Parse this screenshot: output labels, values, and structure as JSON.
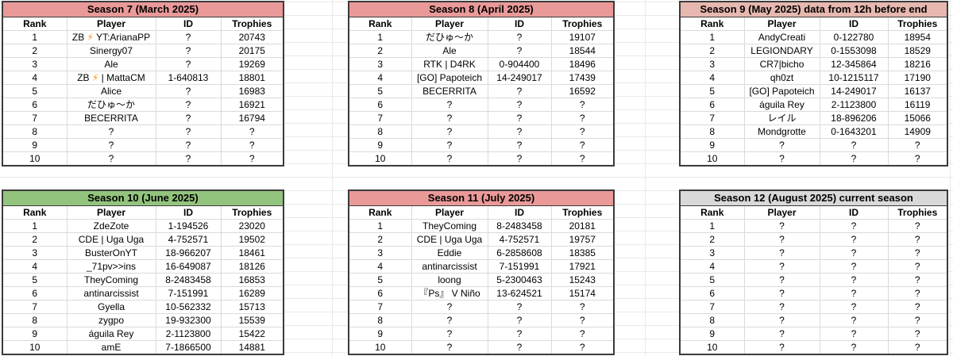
{
  "columns": [
    "Rank",
    "Player",
    "ID",
    "Trophies"
  ],
  "colors": {
    "salmon_header": "#ea9999",
    "pale_salmon_header": "#e6b8af",
    "green_header": "#93c47d",
    "gray_header": "#d9d9d9",
    "table_border": "#3b3b3b",
    "grid_line": "#dadada",
    "lightning": "#f8900b"
  },
  "tables": [
    {
      "title": "Season 7 (March 2025)",
      "title_color": "#ea9999",
      "rows": [
        [
          "1",
          "ZB ⚡ YT:ArianaPP",
          "?",
          "20743"
        ],
        [
          "2",
          "Sinergy07",
          "?",
          "20175"
        ],
        [
          "3",
          "Ale",
          "?",
          "19269"
        ],
        [
          "4",
          "ZB ⚡ | MattaCM",
          "1-640813",
          "18801"
        ],
        [
          "5",
          "Alice",
          "?",
          "16983"
        ],
        [
          "6",
          "だひゅ〜か",
          "?",
          "16921"
        ],
        [
          "7",
          "BECERRITA",
          "?",
          "16794"
        ],
        [
          "8",
          "?",
          "?",
          "?"
        ],
        [
          "9",
          "?",
          "?",
          "?"
        ],
        [
          "10",
          "?",
          "?",
          "?"
        ]
      ]
    },
    {
      "title": "Season 8 (April 2025)",
      "title_color": "#ea9999",
      "rows": [
        [
          "1",
          "だひゅ〜か",
          "?",
          "19107"
        ],
        [
          "2",
          "Ale",
          "?",
          "18544"
        ],
        [
          "3",
          "RTK | D4RK",
          "0-904400",
          "18496"
        ],
        [
          "4",
          "[GO] Papoteich",
          "14-249017",
          "17439"
        ],
        [
          "5",
          "BECERRITA",
          "?",
          "16592"
        ],
        [
          "6",
          "?",
          "?",
          "?"
        ],
        [
          "7",
          "?",
          "?",
          "?"
        ],
        [
          "8",
          "?",
          "?",
          "?"
        ],
        [
          "9",
          "?",
          "?",
          "?"
        ],
        [
          "10",
          "?",
          "?",
          "?"
        ]
      ]
    },
    {
      "title": "Season 9 (May 2025) data from 12h before end",
      "title_color": "#e6b8af",
      "rows": [
        [
          "1",
          "AndyCreati",
          "0-122780",
          "18954"
        ],
        [
          "2",
          "LEGIONDARY",
          "0-1553098",
          "18529"
        ],
        [
          "3",
          "CR7|bicho",
          "12-345864",
          "18216"
        ],
        [
          "4",
          "qh0zt",
          "10-1215117",
          "17190"
        ],
        [
          "5",
          "[GO] Papoteich",
          "14-249017",
          "16137"
        ],
        [
          "6",
          "águila Rey",
          "2-1123800",
          "16119"
        ],
        [
          "7",
          "レイル",
          "18-896206",
          "15066"
        ],
        [
          "8",
          "Mondgrotte",
          "0-1643201",
          "14909"
        ],
        [
          "9",
          "?",
          "?",
          "?"
        ],
        [
          "10",
          "?",
          "?",
          "?"
        ]
      ]
    },
    {
      "title": "Season 10 (June 2025)",
      "title_color": "#93c47d",
      "rows": [
        [
          "1",
          "ZdeZote",
          "1-194526",
          "23020"
        ],
        [
          "2",
          "CDE | Uga Uga",
          "4-752571",
          "19502"
        ],
        [
          "3",
          "BusterOnYT",
          "18-966207",
          "18461"
        ],
        [
          "4",
          "_71pv>>ins",
          "16-649087",
          "18126"
        ],
        [
          "5",
          "TheyComing",
          "8-2483458",
          "16853"
        ],
        [
          "6",
          "antinarcissist",
          "7-151991",
          "16289"
        ],
        [
          "7",
          "Gyella",
          "10-562332",
          "15713"
        ],
        [
          "8",
          "zygpo",
          "19-932300",
          "15539"
        ],
        [
          "9",
          "águila Rey",
          "2-1123800",
          "15422"
        ],
        [
          "10",
          "amE",
          "7-1866500",
          "14881"
        ]
      ]
    },
    {
      "title": "Season 11 (July 2025)",
      "title_color": "#ea9999",
      "rows": [
        [
          "1",
          "TheyComing",
          "8-2483458",
          "20181"
        ],
        [
          "2",
          "CDE | Uga Uga",
          "4-752571",
          "19757"
        ],
        [
          "3",
          "Eddie",
          "6-2858608",
          "18385"
        ],
        [
          "4",
          "antinarcissist",
          "7-151991",
          "17921"
        ],
        [
          "5",
          "loong",
          "5-2300463",
          "15243"
        ],
        [
          "6",
          "『Ps』 V Niño",
          "13-624521",
          "15174"
        ],
        [
          "7",
          "?",
          "?",
          "?"
        ],
        [
          "8",
          "?",
          "?",
          "?"
        ],
        [
          "9",
          "?",
          "?",
          "?"
        ],
        [
          "10",
          "?",
          "?",
          "?"
        ]
      ]
    },
    {
      "title": "Season 12 (August 2025) current season",
      "title_color": "#d9d9d9",
      "rows": [
        [
          "1",
          "?",
          "?",
          "?"
        ],
        [
          "2",
          "?",
          "?",
          "?"
        ],
        [
          "3",
          "?",
          "?",
          "?"
        ],
        [
          "4",
          "?",
          "?",
          "?"
        ],
        [
          "5",
          "?",
          "?",
          "?"
        ],
        [
          "6",
          "?",
          "?",
          "?"
        ],
        [
          "7",
          "?",
          "?",
          "?"
        ],
        [
          "8",
          "?",
          "?",
          "?"
        ],
        [
          "9",
          "?",
          "?",
          "?"
        ],
        [
          "10",
          "?",
          "?",
          "?"
        ]
      ]
    }
  ]
}
